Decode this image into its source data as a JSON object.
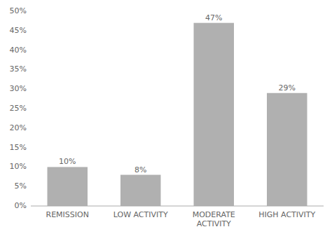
{
  "chart_data": {
    "type": "bar",
    "categories": [
      "REMISSION",
      "LOW ACTIVITY",
      "MODERATE\nACTIVITY",
      "HIGH ACTIVITY"
    ],
    "values": [
      10,
      8,
      47,
      29
    ],
    "value_labels": [
      "10%",
      "8%",
      "47%",
      "29%"
    ],
    "data_labels": true,
    "color": "#b0b0b0",
    "ylim": [
      0,
      50
    ],
    "yticks": [
      {
        "value": 0,
        "label": "0%"
      },
      {
        "value": 5,
        "label": "5%"
      },
      {
        "value": 10,
        "label": "10%"
      },
      {
        "value": 15,
        "label": "15%"
      },
      {
        "value": 20,
        "label": "20%"
      },
      {
        "value": 25,
        "label": "25%"
      },
      {
        "value": 30,
        "label": "30%"
      },
      {
        "value": 35,
        "label": "35%"
      },
      {
        "value": 40,
        "label": "40%"
      },
      {
        "value": 45,
        "label": "45%"
      },
      {
        "value": 50,
        "label": "50%"
      }
    ],
    "grid": false
  }
}
